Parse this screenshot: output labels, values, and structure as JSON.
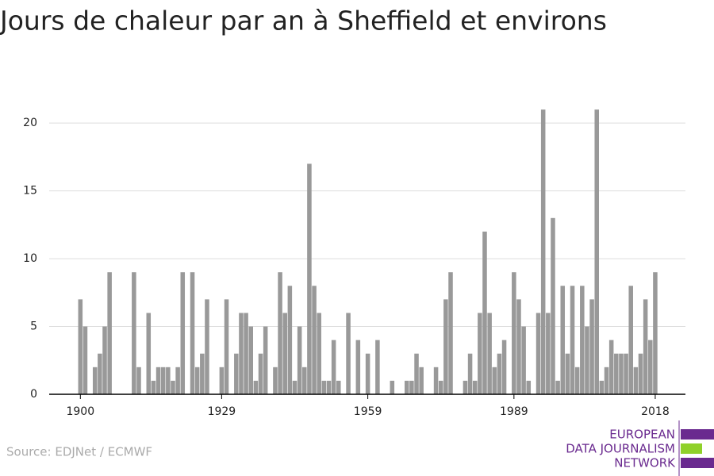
{
  "chart_data": {
    "type": "bar",
    "title": "Jours de chaleur par an à Sheffield et environs",
    "source": "Source: EDJNet / ECMWF",
    "logo": [
      "EUROPEAN",
      "DATA JOURNALISM",
      "NETWORK"
    ],
    "color": "#999999",
    "x": [
      1900,
      1901,
      1902,
      1903,
      1904,
      1905,
      1906,
      1907,
      1908,
      1909,
      1910,
      1911,
      1912,
      1913,
      1914,
      1915,
      1916,
      1917,
      1918,
      1919,
      1920,
      1921,
      1922,
      1923,
      1924,
      1925,
      1926,
      1927,
      1928,
      1929,
      1930,
      1931,
      1932,
      1933,
      1934,
      1935,
      1936,
      1937,
      1938,
      1939,
      1940,
      1941,
      1942,
      1943,
      1944,
      1945,
      1946,
      1947,
      1948,
      1949,
      1950,
      1951,
      1952,
      1953,
      1954,
      1955,
      1956,
      1957,
      1958,
      1959,
      1960,
      1961,
      1962,
      1963,
      1964,
      1965,
      1966,
      1967,
      1968,
      1969,
      1970,
      1971,
      1972,
      1973,
      1974,
      1975,
      1976,
      1977,
      1978,
      1979,
      1980,
      1981,
      1982,
      1983,
      1984,
      1985,
      1986,
      1987,
      1988,
      1989,
      1990,
      1991,
      1992,
      1993,
      1994,
      1995,
      1996,
      1997,
      1998,
      1999,
      2000,
      2001,
      2002,
      2003,
      2004,
      2005,
      2006,
      2007,
      2008,
      2009,
      2010,
      2011,
      2012,
      2013,
      2014,
      2015,
      2016,
      2017,
      2018
    ],
    "values": [
      7,
      5,
      0,
      2,
      3,
      5,
      9,
      0,
      0,
      0,
      0,
      9,
      2,
      0,
      6,
      1,
      2,
      2,
      2,
      1,
      2,
      9,
      0,
      9,
      2,
      3,
      7,
      0,
      0,
      2,
      7,
      0,
      3,
      6,
      6,
      5,
      1,
      3,
      5,
      0,
      2,
      9,
      6,
      8,
      1,
      5,
      2,
      17,
      8,
      6,
      1,
      1,
      4,
      1,
      0,
      6,
      0,
      4,
      0,
      3,
      0,
      4,
      0,
      0,
      1,
      0,
      0,
      1,
      1,
      3,
      2,
      0,
      0,
      2,
      1,
      7,
      9,
      0,
      0,
      1,
      3,
      1,
      6,
      12,
      6,
      2,
      3,
      4,
      0,
      9,
      7,
      5,
      1,
      0,
      6,
      21,
      6,
      13,
      1,
      8,
      3,
      8,
      2,
      8,
      5,
      7,
      21,
      1,
      2,
      4,
      3,
      3,
      3,
      8,
      2,
      3,
      7,
      4,
      9
    ],
    "xlim": [
      1893.6,
      2024.2
    ],
    "xticks": [
      1900,
      1929,
      1959,
      1989,
      2018
    ],
    "ylim": [
      0,
      22
    ],
    "yticks": [
      0,
      5,
      10,
      15,
      20
    ],
    "grid": true
  }
}
